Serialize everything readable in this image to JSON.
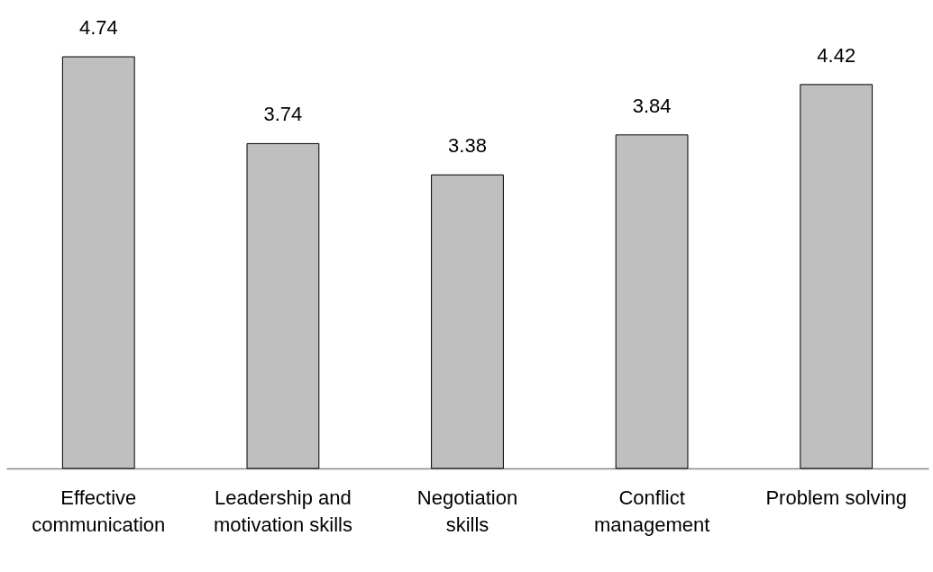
{
  "chart_data": {
    "type": "bar",
    "categories": [
      "Effective\ncommunication",
      "Leadership and\nmotivation skills",
      "Negotiation\nskills",
      "Conflict\nmanagement",
      "Problem solving"
    ],
    "values": [
      4.74,
      3.74,
      3.38,
      3.84,
      4.42
    ],
    "color": "#bfbfbf",
    "data_labels": true,
    "grid": false
  }
}
